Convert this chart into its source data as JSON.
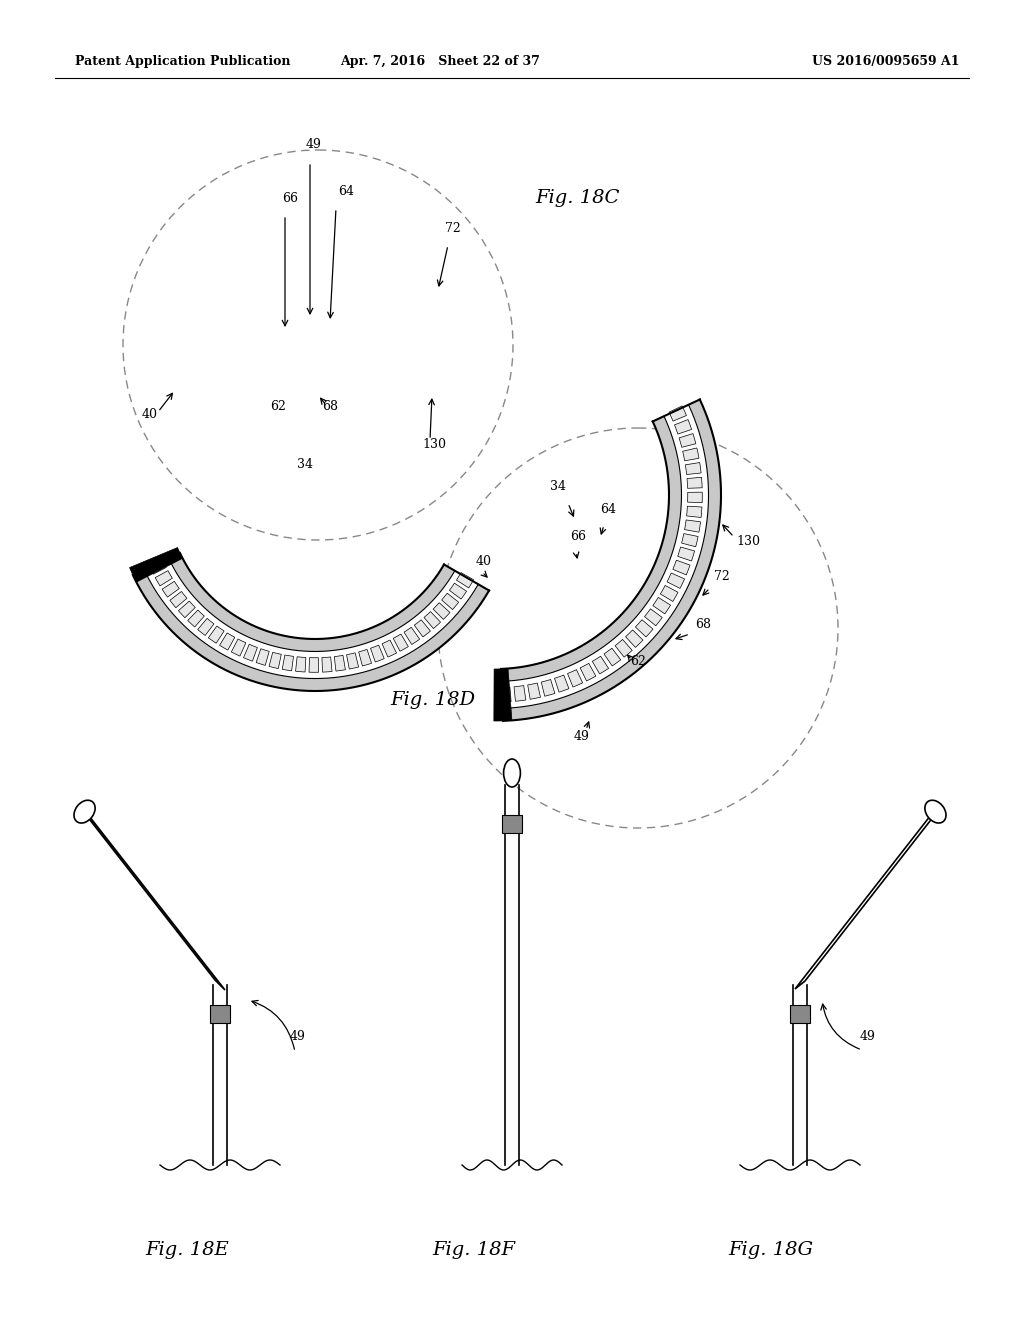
{
  "background_color": "#ffffff",
  "header_left": "Patent Application Publication",
  "header_center": "Apr. 7, 2016   Sheet 22 of 37",
  "header_right": "US 2016/0095659 A1",
  "fig18c_label": "Fig. 18C",
  "fig18d_label": "Fig. 18D",
  "fig18e_label": "Fig. 18E",
  "fig18f_label": "Fig. 18F",
  "fig18g_label": "Fig. 18G"
}
